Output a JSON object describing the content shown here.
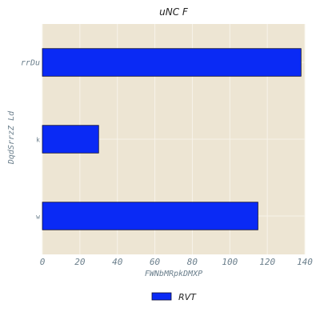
{
  "colors": {
    "plot_background": "#ede5d3",
    "grid": "#f7f3ea",
    "bar_fill": "#0a2af5",
    "bar_edge": "#111133",
    "axis_text": "#6b7f8c"
  },
  "chart_data": {
    "type": "bar",
    "orientation": "horizontal",
    "title": "uNC  F",
    "xlabel": "FWNbMRpkDMXP",
    "ylabel": "DqdSrrzZ Ld",
    "categories": [
      "rrDu",
      "k",
      "w"
    ],
    "series": [
      {
        "name": "RVT",
        "values": [
          138,
          30,
          115
        ]
      }
    ],
    "xlim": [
      0,
      140
    ],
    "xticks": [
      0,
      20,
      40,
      60,
      80,
      100,
      120,
      140
    ],
    "grid": true,
    "legend_position": "bottom-center"
  }
}
